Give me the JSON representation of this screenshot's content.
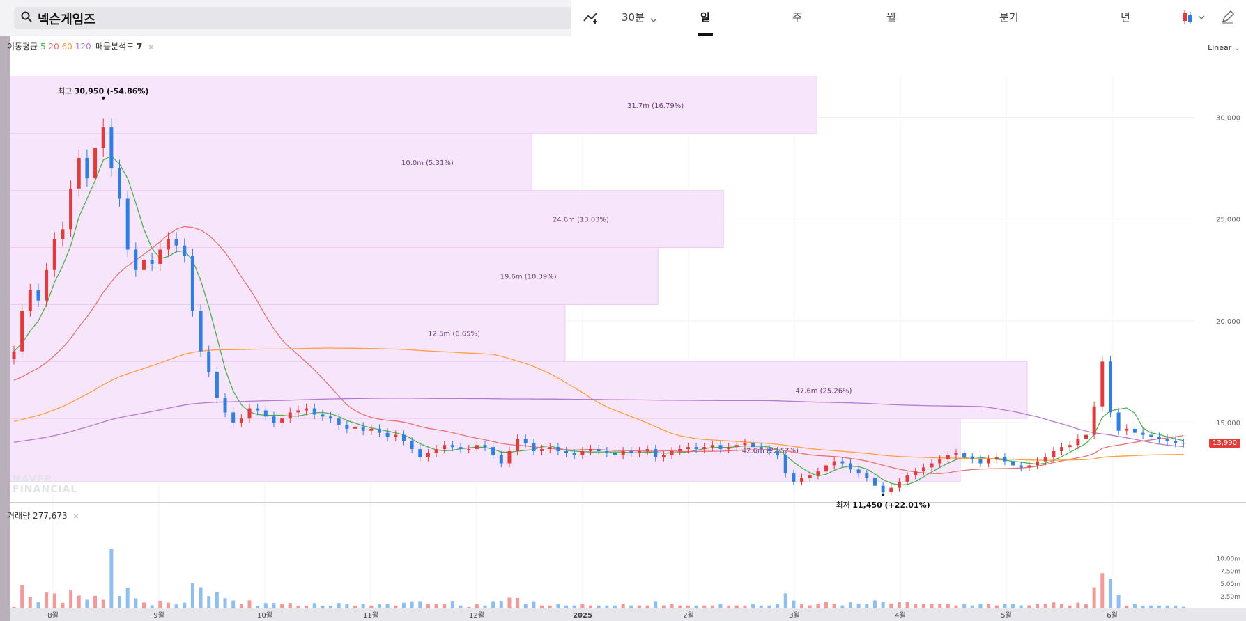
{
  "search": {
    "label": "넥슨게임즈"
  },
  "toolbar": {
    "interval": "30분",
    "tabs": [
      "일",
      "주",
      "월",
      "분기",
      "년"
    ],
    "active_tab": "일",
    "icons": [
      "line-add-icon",
      "chevron-down-icon",
      "candle-icon",
      "pencil-icon"
    ]
  },
  "indicators": {
    "ma_label": "이동평균",
    "ma_periods": [
      "5",
      "20",
      "60",
      "120"
    ],
    "ma_colors": [
      "#4caf50",
      "#e57373",
      "#ff9f40",
      "#b37bd0"
    ],
    "vp_label": "매물분석도",
    "vp_value": "7",
    "scale_label": "Linear",
    "volume_label": "거래량",
    "volume_value": "277,673"
  },
  "annotations": {
    "high_label": "최고",
    "high_value": "30,950 (-54.86%)",
    "low_label": "최저",
    "low_value": "11,450 (+22.01%)",
    "current_price": "13,990"
  },
  "watermark": [
    "NAVER",
    "FINANCIAL"
  ],
  "chart_data": {
    "type": "candlestick",
    "y_ticks": [
      "30,000",
      "25,000",
      "20,000",
      "15,000"
    ],
    "y_tick_values": [
      30000,
      25000,
      20000,
      15000
    ],
    "ylim": [
      11000,
      32000
    ],
    "x_labels": [
      "8월",
      "9월",
      "10월",
      "11월",
      "12월",
      "2025",
      "2월",
      "3월",
      "4월",
      "5월",
      "6월"
    ],
    "volume_ticks": [
      "10.00m",
      "7.50m",
      "5.00m",
      "2.50m"
    ],
    "volume_tick_values": [
      10,
      7.5,
      5,
      2.5
    ],
    "volume_profile": [
      {
        "low": 29200,
        "high": 32000,
        "label": "31.7m (16.79%)"
      },
      {
        "low": 26400,
        "high": 29200,
        "label": "10.0m (5.31%)"
      },
      {
        "low": 23600,
        "high": 26400,
        "label": "24.6m (13.03%)"
      },
      {
        "low": 20800,
        "high": 23600,
        "label": "19.6m (10.39%)"
      },
      {
        "low": 18000,
        "high": 20800,
        "label": "12.5m (6.65%)"
      },
      {
        "low": 15200,
        "high": 18000,
        "label": "47.6m (25.26%)"
      },
      {
        "low": 12100,
        "high": 15200,
        "label": "42.6m (22.57%)"
      }
    ],
    "closes": [
      18500,
      20500,
      21500,
      21000,
      22500,
      24000,
      24500,
      26500,
      28000,
      27000,
      28500,
      29500,
      27500,
      26000,
      23500,
      22500,
      23000,
      22800,
      23500,
      24000,
      23700,
      23200,
      20500,
      18500,
      17500,
      16200,
      15500,
      15000,
      15200,
      15700,
      15600,
      15300,
      15000,
      15200,
      15500,
      15600,
      15700,
      15400,
      15300,
      15200,
      14900,
      14700,
      14800,
      14600,
      14700,
      14500,
      14300,
      14400,
      14100,
      13700,
      13300,
      13500,
      13700,
      13900,
      13800,
      13700,
      13700,
      13900,
      13800,
      13400,
      13000,
      13600,
      14200,
      14000,
      13600,
      13700,
      13800,
      13600,
      13500,
      13400,
      13600,
      13700,
      13600,
      13500,
      13400,
      13600,
      13500,
      13600,
      13700,
      13300,
      13400,
      13600,
      13700,
      13800,
      13700,
      13800,
      13900,
      13700,
      13800,
      13900,
      14000,
      13800,
      13700,
      13600,
      13400,
      12500,
      12100,
      12300,
      12400,
      12600,
      12900,
      13100,
      13000,
      12700,
      12500,
      12300,
      11900,
      11600,
      11800,
      12100,
      12400,
      12600,
      12800,
      13000,
      13200,
      13400,
      13500,
      13300,
      13200,
      13000,
      13200,
      13300,
      13100,
      12900,
      12800,
      12900,
      13100,
      13300,
      13600,
      13800,
      13900,
      14200,
      14400,
      15800,
      18000,
      15500,
      14600,
      14700,
      14500,
      14400,
      14300,
      14200,
      14100,
      14000,
      13990
    ],
    "ma_values": {
      "5": {
        "start": 18500,
        "peak": 27500,
        "end": 14100
      },
      "20": {
        "start": 17000,
        "peak": 25300,
        "end": 14100
      },
      "60": {
        "start": 15000,
        "peak": 20800,
        "end": 13600
      },
      "120": {
        "start": 14000,
        "peak": 17700,
        "end": 13600
      }
    }
  }
}
